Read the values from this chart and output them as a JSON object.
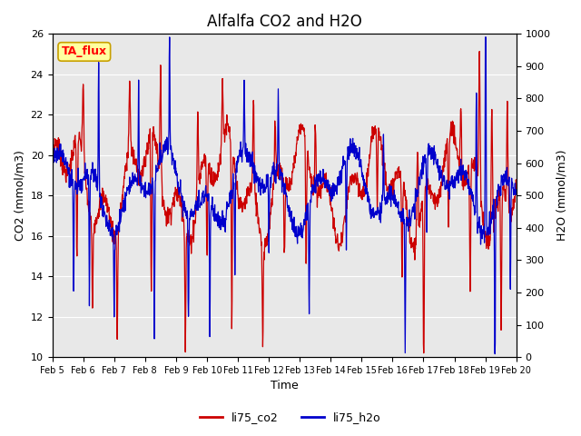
{
  "title": "Alfalfa CO2 and H2O",
  "xlabel": "Time",
  "ylabel_left": "CO2 (mmol/m3)",
  "ylabel_right": "H2O (mmol/m3)",
  "ylim_left": [
    10,
    26
  ],
  "ylim_right": [
    0,
    1000
  ],
  "yticks_left": [
    10,
    12,
    14,
    16,
    18,
    20,
    22,
    24,
    26
  ],
  "yticks_right": [
    0,
    100,
    200,
    300,
    400,
    500,
    600,
    700,
    800,
    900,
    1000
  ],
  "xtick_labels": [
    "Feb 5",
    "Feb 6",
    "Feb 7",
    "Feb 8",
    "Feb 9",
    "Feb 10",
    "Feb 11",
    "Feb 12",
    "Feb 13",
    "Feb 14",
    "Feb 15",
    "Feb 16",
    "Feb 17",
    "Feb 18",
    "Feb 19",
    "Feb 20"
  ],
  "co2_color": "#cc0000",
  "h2o_color": "#0000cc",
  "background_color": "#ffffff",
  "plot_bg_color": "#e8e8e8",
  "grid_color": "#ffffff",
  "legend_label_co2": "li75_co2",
  "legend_label_h2o": "li75_h2o",
  "annotation_text": "TA_flux",
  "annotation_bg": "#ffffa0",
  "annotation_border": "#c8a000",
  "title_fontsize": 12,
  "axis_fontsize": 9,
  "tick_fontsize": 8,
  "legend_fontsize": 9,
  "linewidth": 0.9
}
